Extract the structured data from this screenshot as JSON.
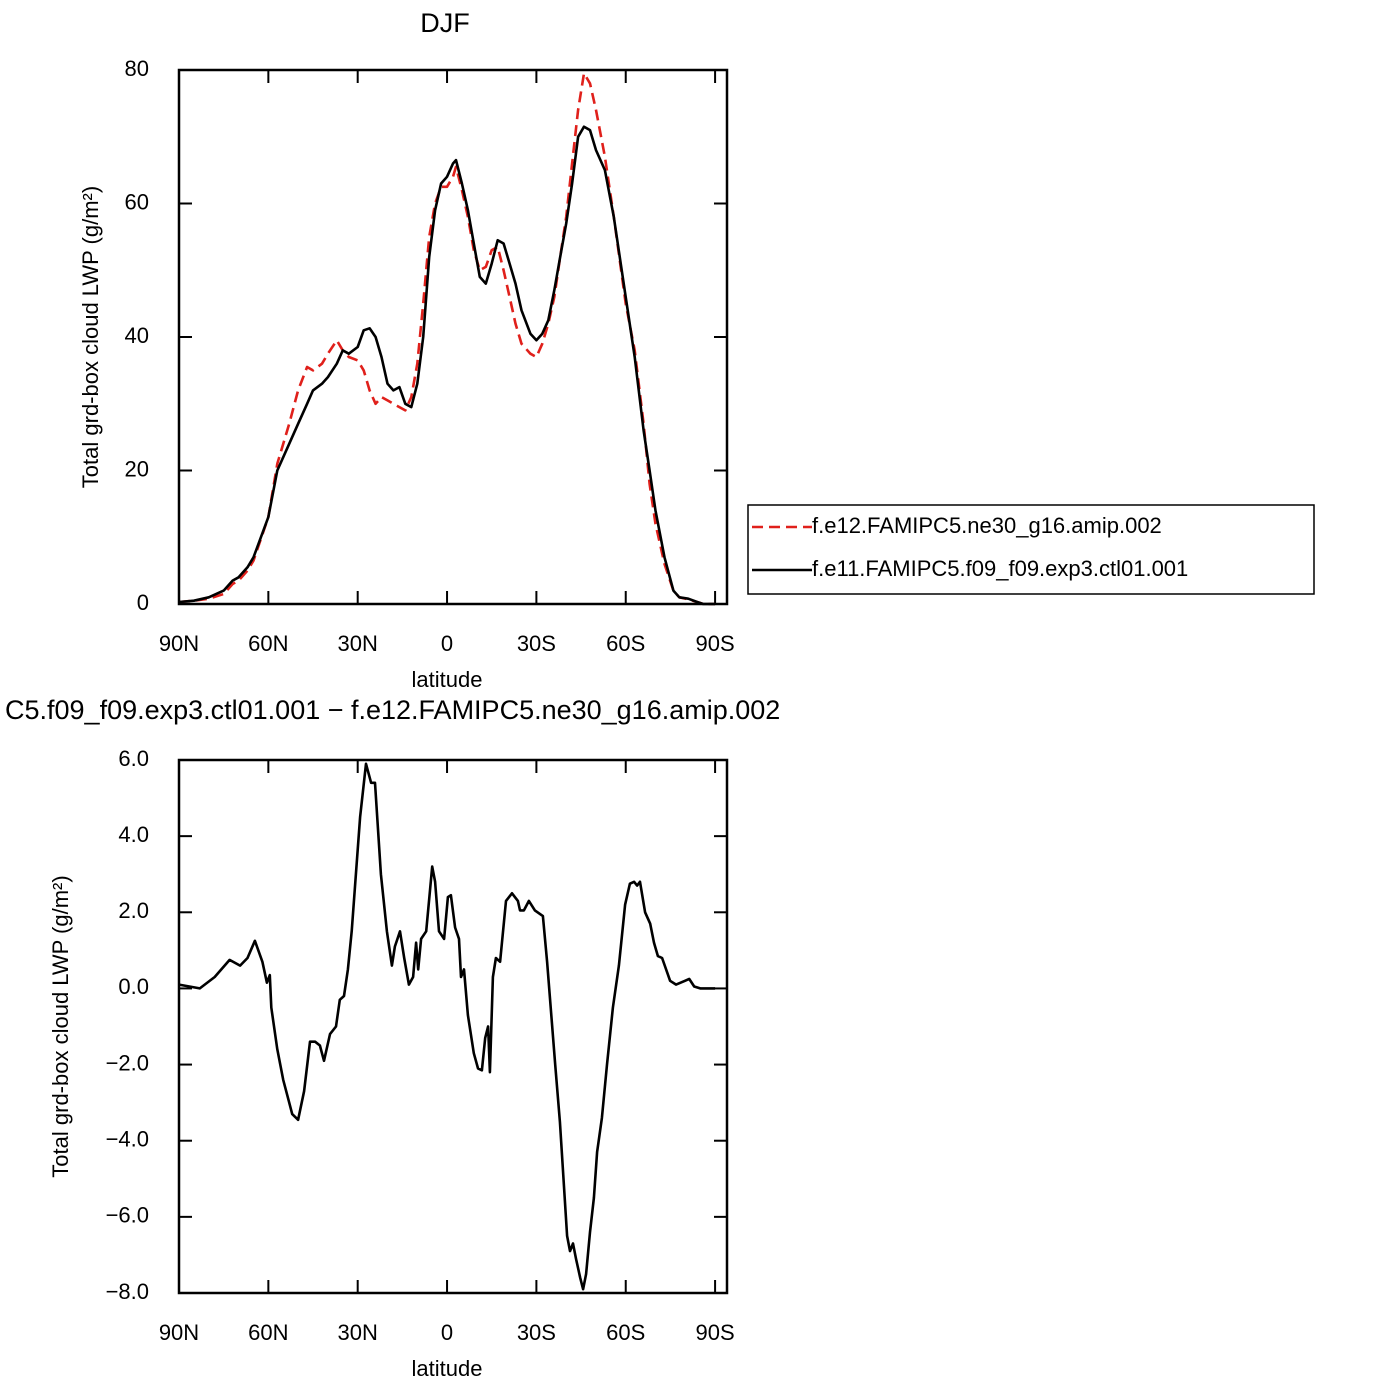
{
  "chart_data": [
    {
      "type": "line",
      "title": "DJF",
      "xlabel": "latitude",
      "ylabel": "Total grd-box cloud LWP (g/m²)",
      "xlim": [
        90,
        -94
      ],
      "ylim": [
        0,
        80
      ],
      "xticks": [
        {
          "value": 90,
          "label": "90N"
        },
        {
          "value": 60,
          "label": "60N"
        },
        {
          "value": 30,
          "label": "30N"
        },
        0,
        {
          "value": -30,
          "label": "30S"
        },
        {
          "value": -60,
          "label": "60S"
        },
        {
          "value": -90,
          "label": "90S"
        }
      ],
      "yticks": [
        0,
        20,
        40,
        60,
        80
      ],
      "legend": "right",
      "x": [
        90,
        85,
        80,
        75,
        72,
        70,
        67,
        65,
        60,
        57,
        53,
        50,
        47,
        45,
        42,
        40,
        37,
        35,
        33,
        30,
        28,
        26,
        24,
        22,
        20,
        18,
        16,
        14,
        12,
        10,
        8,
        6,
        4,
        2,
        0,
        -2,
        -3,
        -5,
        -7,
        -9,
        -11,
        -13,
        -15,
        -17,
        -19,
        -21,
        -23,
        -25,
        -28,
        -30,
        -32,
        -34,
        -36,
        -38,
        -40,
        -42,
        -44,
        -46,
        -48,
        -50,
        -53,
        -56,
        -60,
        -63,
        -66,
        -68,
        -70,
        -73,
        -76,
        -78,
        -81,
        -84,
        -86,
        -90
      ],
      "series": [
        {
          "name": "f.e12.FAMIPC5.ne30_g16.amip.002",
          "color": "#e0201b",
          "style": "dashed",
          "values": [
            0.3,
            0.5,
            0.8,
            1.5,
            3,
            3.5,
            5,
            6.5,
            13,
            21,
            27,
            32,
            35.5,
            35,
            36,
            37.5,
            39.5,
            38,
            37,
            36.5,
            35,
            32,
            30,
            31,
            30.5,
            30,
            29.5,
            29,
            31,
            36,
            45,
            55,
            60,
            62.5,
            62.5,
            64,
            65.5,
            62,
            58,
            53,
            50,
            50.5,
            53,
            53.5,
            50,
            46,
            42,
            39,
            37.5,
            37,
            39,
            42,
            46,
            52,
            58,
            66,
            74,
            79.5,
            78,
            74,
            67,
            58,
            45,
            38,
            27,
            18,
            12,
            6,
            2,
            1,
            0.7,
            0.3,
            0,
            0
          ]
        },
        {
          "name": "f.e11.FAMIPC5.f09_f09.exp3.ctl01.001",
          "color": "#000000",
          "style": "solid",
          "values": [
            0.3,
            0.5,
            1,
            2,
            3.5,
            4,
            5.5,
            7,
            13,
            20,
            24,
            27,
            30,
            32,
            33,
            34,
            36,
            38,
            37.5,
            38.5,
            41,
            41.3,
            40,
            37,
            33,
            32,
            32.5,
            30,
            29.5,
            33,
            40,
            52,
            59,
            63,
            64,
            66,
            66.5,
            63,
            59,
            54,
            49,
            48,
            51,
            54.5,
            54,
            51,
            48,
            44,
            40.5,
            39.5,
            40.5,
            42.5,
            47,
            52,
            57,
            63,
            70,
            71.5,
            71,
            68,
            65,
            58,
            46,
            37,
            26,
            20,
            14,
            7,
            2,
            1,
            0.8,
            0.3,
            0,
            0
          ]
        }
      ]
    },
    {
      "type": "line",
      "title": "C5.f09_f09.exp3.ctl01.001 − f.e12.FAMIPC5.ne30_g16.amip.002",
      "xlabel": "latitude",
      "ylabel": "Total grd-box cloud LWP (g/m²)",
      "xlim": [
        90,
        -94
      ],
      "ylim": [
        -8,
        6
      ],
      "xticks": [
        {
          "value": 90,
          "label": "90N"
        },
        {
          "value": 60,
          "label": "60N"
        },
        {
          "value": 30,
          "label": "30N"
        },
        0,
        {
          "value": -30,
          "label": "30S"
        },
        {
          "value": -60,
          "label": "60S"
        },
        {
          "value": -90,
          "label": "90S"
        }
      ],
      "yticks": [
        {
          "value": 6,
          "label": "6.0"
        },
        {
          "value": 4,
          "label": "4.0"
        },
        {
          "value": 2,
          "label": "2.0"
        },
        {
          "value": 0,
          "label": "0.0"
        },
        {
          "value": -2,
          "label": "−2.0"
        },
        {
          "value": -4,
          "label": "−4.0"
        },
        {
          "value": -6,
          "label": "−6.0"
        },
        {
          "value": -8,
          "label": "−8.0"
        }
      ],
      "color": "#000000",
      "x": [
        90,
        83,
        78,
        73,
        69.5,
        67,
        64.5,
        62,
        60.5,
        59.5,
        59,
        57,
        55,
        53,
        52,
        50,
        48,
        46,
        44.3,
        42.7,
        41.3,
        39.3,
        37.3,
        36,
        34.6,
        33.3,
        32,
        29.2,
        27.2,
        25.5,
        24.2,
        22.2,
        20.2,
        18.5,
        17.5,
        15.8,
        14.4,
        12.8,
        11.4,
        10.4,
        9.7,
        8.7,
        7,
        5,
        4,
        2.7,
        1,
        -0.3,
        -1.3,
        -2.7,
        -4,
        -4.7,
        -5.7,
        -7,
        -9,
        -10.4,
        -11.7,
        -12.8,
        -13.8,
        -14.4,
        -15.4,
        -16.4,
        -17.8,
        -19.8,
        -21.8,
        -23.8,
        -24.5,
        -25.8,
        -27.5,
        -29.5,
        -32.2,
        -33.6,
        -36.3,
        -37.9,
        -40.3,
        -41.3,
        -42.3,
        -43.3,
        -44.7,
        -45.7,
        -46.7,
        -48,
        -49.3,
        -50.4,
        -52,
        -53.7,
        -55.7,
        -57.7,
        -59.8,
        -61.4,
        -62.8,
        -63.8,
        -64.8,
        -66.5,
        -68.2,
        -69.5,
        -70.8,
        -72.2,
        -74.9,
        -76.9,
        -79.9,
        -81.3,
        -83,
        -85,
        -90
      ],
      "values": [
        0.1,
        0,
        0.3,
        0.75,
        0.6,
        0.8,
        1.25,
        0.7,
        0.15,
        0.35,
        -0.5,
        -1.6,
        -2.4,
        -3,
        -3.3,
        -3.45,
        -2.7,
        -1.4,
        -1.4,
        -1.5,
        -1.9,
        -1.2,
        -1,
        -0.3,
        -0.2,
        0.5,
        1.5,
        4.5,
        5.9,
        5.4,
        5.4,
        3,
        1.5,
        0.6,
        1.1,
        1.5,
        0.8,
        0.1,
        0.3,
        1.2,
        0.5,
        1.3,
        1.5,
        3.2,
        2.8,
        1.5,
        1.3,
        2.4,
        2.45,
        1.6,
        1.3,
        0.3,
        0.5,
        -0.7,
        -1.7,
        -2.1,
        -2.15,
        -1.3,
        -1,
        -2.2,
        0.3,
        0.8,
        0.7,
        2.3,
        2.5,
        2.3,
        2.05,
        2.05,
        2.3,
        2.05,
        1.9,
        0.7,
        -2,
        -3.5,
        -6.5,
        -6.9,
        -6.7,
        -7.1,
        -7.6,
        -7.9,
        -7.5,
        -6.4,
        -5.5,
        -4.3,
        -3.4,
        -2,
        -0.5,
        0.6,
        2.2,
        2.75,
        2.8,
        2.7,
        2.8,
        2,
        1.7,
        1.2,
        0.85,
        0.8,
        0.2,
        0.1,
        0.2,
        0.25,
        0.05,
        0,
        0
      ]
    }
  ]
}
